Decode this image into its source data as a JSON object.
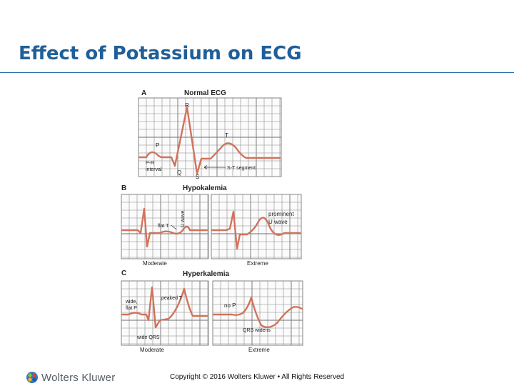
{
  "slide": {
    "title": "Effect of Potassium on ECG",
    "copyright": "Copyright © 2016 Wolters Kluwer • All Rights Reserved",
    "logo_text": "Wolters Kluwer",
    "accent_color": "#1f5f99",
    "wave_color": "#d0735d"
  },
  "figure": {
    "panel_a": {
      "letter": "A",
      "heading": "Normal ECG",
      "labels": {
        "r": "R",
        "t": "T",
        "p": "P",
        "q": "Q",
        "s": "S",
        "pr_line1": "P-R",
        "pr_line2": "interval",
        "st": "S-T segment"
      }
    },
    "panel_b": {
      "letter": "B",
      "heading": "Hypokalemia",
      "left_caption": "Moderate",
      "right_caption": "Extreme",
      "labels": {
        "flat_t": "flat T",
        "u_wave": "U wave",
        "prominent_line1": "prominent",
        "prominent_line2": "U wave"
      }
    },
    "panel_c": {
      "letter": "C",
      "heading": "Hyperkalemia",
      "left_caption": "Moderate",
      "right_caption": "Extreme",
      "labels": {
        "wide_line1": "wide,",
        "wide_line2": "flat P",
        "peaked_t": "peaked T",
        "wide_qrs": "wide QRS",
        "no_p": "no P",
        "qrs_widens": "QRS widens"
      }
    }
  }
}
